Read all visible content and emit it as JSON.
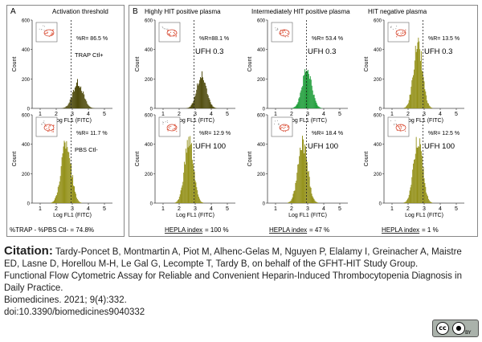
{
  "figure": {
    "panel_a_letter": "A",
    "panel_b_letter": "B",
    "threshold_label": "Activation threshold",
    "ylabel": "Count",
    "xlabel": "Log FL1 (FITC)",
    "trap_footer": "%TRAP - %PBS Ctl- = 74.8%",
    "column_titles": [
      "Highly HIT positive plasma",
      "Intermediately HIT positive plasma",
      "HIT negative plasma"
    ],
    "hepla_labels": [
      {
        "label": "HEPLA index",
        "value": "= 100 %"
      },
      {
        "label": "HEPLA index",
        "value": "= 47 %"
      },
      {
        "label": "HEPLA index",
        "value": "= 1 %"
      }
    ]
  },
  "chart_data": [
    {
      "type": "histogram",
      "panel": "A",
      "pct": "%R= 86.5 %",
      "cond": "TRAP Ctl+",
      "color": "#4e4a0c",
      "peak": 3.35,
      "width": 0.32,
      "yticks": [
        0,
        200,
        400,
        600
      ],
      "xticks": [
        1,
        2,
        3,
        4,
        5
      ],
      "ylim": [
        0,
        600
      ],
      "xlim": [
        0.5,
        5.5
      ],
      "threshold": 2.92,
      "scale": 0.3
    },
    {
      "type": "histogram",
      "panel": "A",
      "pct": "%R= 11.7 %",
      "cond": "PBS Ctl-",
      "color": "#939018",
      "peak": 2.62,
      "width": 0.3,
      "yticks": [
        0,
        200,
        400,
        600
      ],
      "xticks": [
        1,
        2,
        3,
        4,
        5
      ],
      "ylim": [
        0,
        600
      ],
      "xlim": [
        0.5,
        5.5
      ],
      "threshold": 2.92,
      "scale": 0.72
    },
    {
      "type": "histogram",
      "panel": "B",
      "pct": "%R=88.1 %",
      "cond": "UFH 0.3",
      "color": "#4e4a0c",
      "peak": 3.4,
      "width": 0.3,
      "yticks": [
        0,
        200,
        400,
        600
      ],
      "xticks": [
        1,
        2,
        3,
        4,
        5
      ],
      "ylim": [
        0,
        600
      ],
      "xlim": [
        0.5,
        5.5
      ],
      "threshold": 2.92,
      "scale": 0.38
    },
    {
      "type": "histogram",
      "panel": "B",
      "pct": "%R= 53.4 %",
      "cond": "UFH 0.3",
      "color": "#1f9d3a",
      "peak": 2.95,
      "width": 0.3,
      "yticks": [
        0,
        200,
        400,
        600
      ],
      "xticks": [
        1,
        2,
        3,
        4,
        5
      ],
      "ylim": [
        0,
        600
      ],
      "xlim": [
        0.5,
        5.5
      ],
      "threshold": 2.92,
      "scale": 0.45
    },
    {
      "type": "histogram",
      "panel": "B",
      "pct": "%R= 13.5 %",
      "cond": "UFH 0.3",
      "color": "#939018",
      "peak": 2.62,
      "width": 0.28,
      "yticks": [
        0,
        200,
        400,
        600
      ],
      "xticks": [
        1,
        2,
        3,
        4,
        5
      ],
      "ylim": [
        0,
        600
      ],
      "xlim": [
        0.5,
        5.5
      ],
      "threshold": 2.92,
      "scale": 0.75
    },
    {
      "type": "histogram",
      "panel": "B",
      "pct": "%R= 12.9 %",
      "cond": "UFH 100",
      "color": "#939018",
      "peak": 2.62,
      "width": 0.28,
      "yticks": [
        0,
        200,
        400,
        600
      ],
      "xticks": [
        1,
        2,
        3,
        4,
        5
      ],
      "ylim": [
        0,
        600
      ],
      "xlim": [
        0.5,
        5.5
      ],
      "threshold": 2.92,
      "scale": 0.72
    },
    {
      "type": "histogram",
      "panel": "B",
      "pct": "%R= 18.4 %",
      "cond": "UFH 100",
      "color": "#939018",
      "peak": 2.7,
      "width": 0.3,
      "yticks": [
        0,
        200,
        400,
        600
      ],
      "xticks": [
        1,
        2,
        3,
        4,
        5
      ],
      "ylim": [
        0,
        600
      ],
      "xlim": [
        0.5,
        5.5
      ],
      "threshold": 2.92,
      "scale": 0.7
    },
    {
      "type": "histogram",
      "panel": "B",
      "pct": "%R= 12.5 %",
      "cond": "UFH 100",
      "color": "#939018",
      "peak": 2.62,
      "width": 0.28,
      "yticks": [
        0,
        200,
        400,
        600
      ],
      "xticks": [
        1,
        2,
        3,
        4,
        5
      ],
      "ylim": [
        0,
        600
      ],
      "xlim": [
        0.5,
        5.5
      ],
      "threshold": 2.92,
      "scale": 0.75
    }
  ],
  "citation": {
    "heading": "Citation:",
    "authors": " Tardy-Poncet B, Montmartin A, Piot M, Alhenc-Gelas M, Nguyen P, Elalamy I, Greinacher A, Maistre ED, Lasne D, Horellou M-H, Le Gal G, Lecompte T, Tardy B, on behalf of the GFHT-HIT Study Group.",
    "title": "Functional Flow Cytometric Assay for Reliable and Convenient Heparin-Induced Thrombocytopenia Diagnosis in Daily Practice.",
    "journal": "Biomedicines. 2021; 9(4):332.",
    "doi": "doi:10.3390/biomedicines9040332"
  },
  "license": {
    "cc": "cc",
    "by_icon": "person-icon",
    "by": "BY"
  }
}
